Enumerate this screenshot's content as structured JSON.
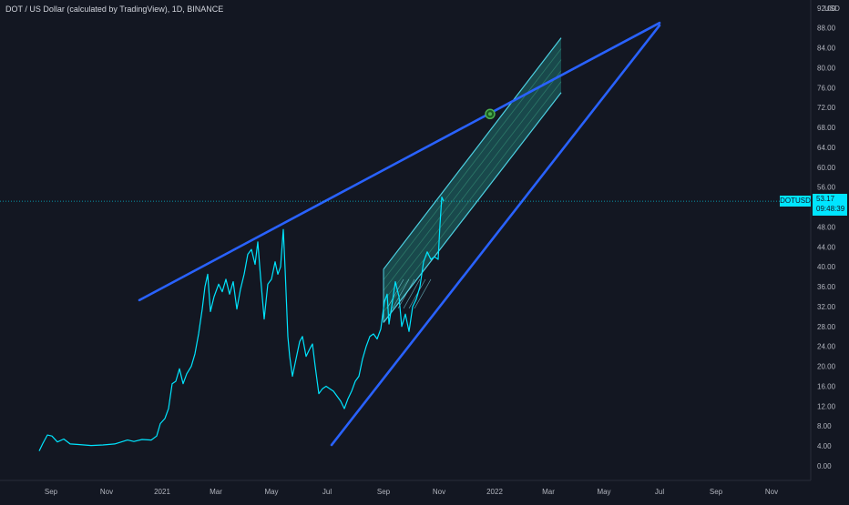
{
  "header": {
    "title": "DOT / US Dollar (calculated by TradingView), 1D, BINANCE"
  },
  "price_axis": {
    "unit": "USD",
    "ticks": [
      "92.00",
      "88.00",
      "84.00",
      "80.00",
      "76.00",
      "72.00",
      "68.00",
      "64.00",
      "60.00",
      "56.00",
      "52.00",
      "48.00",
      "44.00",
      "40.00",
      "36.00",
      "32.00",
      "28.00",
      "24.00",
      "20.00",
      "16.00",
      "12.00",
      "8.00",
      "4.00",
      "0.00"
    ]
  },
  "time_axis": {
    "ticks": [
      "Sep",
      "Nov",
      "2021",
      "Mar",
      "May",
      "Jul",
      "Sep",
      "Nov",
      "2022",
      "Mar",
      "May",
      "Jul",
      "Sep",
      "Nov"
    ]
  },
  "last_price": {
    "symbol": "DOTUSD",
    "price": "53.17",
    "countdown": "09:48:39"
  },
  "colors": {
    "background": "#131722",
    "price_line": "#00e5ff",
    "trendline": "#2962ff",
    "channel_fill": "#26a69a",
    "marker": "#4caf50"
  },
  "chart_data": {
    "type": "line",
    "title": "DOT / US Dollar (calculated by TradingView), 1D, BINANCE",
    "xlabel": "",
    "ylabel": "USD",
    "ylim": [
      -2,
      92
    ],
    "x_range": [
      "2020-08-18",
      "2022-12-31"
    ],
    "grid": false,
    "series": [
      {
        "name": "DOTUSD",
        "points": [
          [
            "2020-08-19",
            3.0
          ],
          [
            "2020-08-23",
            4.5
          ],
          [
            "2020-08-28",
            6.2
          ],
          [
            "2020-09-02",
            6.0
          ],
          [
            "2020-09-08",
            4.8
          ],
          [
            "2020-09-15",
            5.4
          ],
          [
            "2020-09-22",
            4.4
          ],
          [
            "2020-10-01",
            4.3
          ],
          [
            "2020-10-15",
            4.1
          ],
          [
            "2020-10-28",
            4.2
          ],
          [
            "2020-11-10",
            4.4
          ],
          [
            "2020-11-24",
            5.2
          ],
          [
            "2020-12-01",
            4.9
          ],
          [
            "2020-12-10",
            5.3
          ],
          [
            "2020-12-20",
            5.2
          ],
          [
            "2020-12-26",
            6.0
          ],
          [
            "2020-12-30",
            8.5
          ],
          [
            "2021-01-04",
            9.5
          ],
          [
            "2021-01-08",
            11.5
          ],
          [
            "2021-01-12",
            16.5
          ],
          [
            "2021-01-16",
            17.0
          ],
          [
            "2021-01-20",
            19.5
          ],
          [
            "2021-01-24",
            16.5
          ],
          [
            "2021-01-28",
            18.5
          ],
          [
            "2021-02-02",
            20.0
          ],
          [
            "2021-02-06",
            22.5
          ],
          [
            "2021-02-10",
            26.5
          ],
          [
            "2021-02-14",
            31.5
          ],
          [
            "2021-02-17",
            36.0
          ],
          [
            "2021-02-20",
            38.5
          ],
          [
            "2021-02-23",
            31.0
          ],
          [
            "2021-02-27",
            34.0
          ],
          [
            "2021-03-04",
            36.5
          ],
          [
            "2021-03-08",
            35.0
          ],
          [
            "2021-03-12",
            37.5
          ],
          [
            "2021-03-16",
            34.5
          ],
          [
            "2021-03-20",
            37.0
          ],
          [
            "2021-03-24",
            31.5
          ],
          [
            "2021-03-28",
            35.5
          ],
          [
            "2021-04-01",
            38.5
          ],
          [
            "2021-04-05",
            42.5
          ],
          [
            "2021-04-09",
            43.5
          ],
          [
            "2021-04-13",
            40.5
          ],
          [
            "2021-04-16",
            45.0
          ],
          [
            "2021-04-19",
            38.0
          ],
          [
            "2021-04-23",
            29.5
          ],
          [
            "2021-04-27",
            36.5
          ],
          [
            "2021-05-01",
            37.5
          ],
          [
            "2021-05-05",
            41.0
          ],
          [
            "2021-05-08",
            38.5
          ],
          [
            "2021-05-11",
            40.0
          ],
          [
            "2021-05-14",
            47.5
          ],
          [
            "2021-05-16",
            39.5
          ],
          [
            "2021-05-19",
            26.0
          ],
          [
            "2021-05-21",
            22.0
          ],
          [
            "2021-05-24",
            18.0
          ],
          [
            "2021-05-28",
            21.5
          ],
          [
            "2021-06-01",
            25.0
          ],
          [
            "2021-06-04",
            26.0
          ],
          [
            "2021-06-08",
            22.0
          ],
          [
            "2021-06-12",
            23.5
          ],
          [
            "2021-06-15",
            24.5
          ],
          [
            "2021-06-18",
            20.0
          ],
          [
            "2021-06-22",
            14.5
          ],
          [
            "2021-06-26",
            15.5
          ],
          [
            "2021-06-30",
            16.0
          ],
          [
            "2021-07-04",
            15.5
          ],
          [
            "2021-07-08",
            15.0
          ],
          [
            "2021-07-12",
            14.0
          ],
          [
            "2021-07-16",
            13.0
          ],
          [
            "2021-07-20",
            11.5
          ],
          [
            "2021-07-24",
            13.5
          ],
          [
            "2021-07-28",
            15.0
          ],
          [
            "2021-08-01",
            17.0
          ],
          [
            "2021-08-05",
            18.0
          ],
          [
            "2021-08-09",
            21.5
          ],
          [
            "2021-08-13",
            24.0
          ],
          [
            "2021-08-17",
            26.0
          ],
          [
            "2021-08-21",
            26.5
          ],
          [
            "2021-08-25",
            25.5
          ],
          [
            "2021-08-29",
            27.5
          ],
          [
            "2021-09-02",
            33.0
          ],
          [
            "2021-09-05",
            34.5
          ],
          [
            "2021-09-07",
            28.5
          ],
          [
            "2021-09-10",
            32.0
          ],
          [
            "2021-09-14",
            37.0
          ],
          [
            "2021-09-18",
            34.0
          ],
          [
            "2021-09-21",
            28.0
          ],
          [
            "2021-09-25",
            30.5
          ],
          [
            "2021-09-29",
            27.0
          ],
          [
            "2021-10-03",
            32.0
          ],
          [
            "2021-10-07",
            33.5
          ],
          [
            "2021-10-11",
            36.0
          ],
          [
            "2021-10-15",
            41.0
          ],
          [
            "2021-10-19",
            43.0
          ],
          [
            "2021-10-23",
            41.5
          ],
          [
            "2021-10-27",
            42.0
          ],
          [
            "2021-10-31",
            41.5
          ],
          [
            "2021-11-02",
            48.5
          ],
          [
            "2021-11-04",
            54.0
          ],
          [
            "2021-11-06",
            53.2
          ]
        ]
      }
    ],
    "annotations": {
      "trendlines": [
        {
          "from": [
            "2020-12-07",
            33.3
          ],
          "to": [
            "2022-07-01",
            89.0
          ]
        },
        {
          "from": [
            "2021-07-06",
            4.2
          ],
          "to": [
            "2022-07-01",
            88.5
          ]
        }
      ],
      "regression_channel": {
        "start": "2021-09-01",
        "start_values": [
          28.8,
          34.2,
          39.5
        ],
        "end": "2022-03-15",
        "end_values": [
          75.0,
          80.5,
          86.0
        ],
        "band": 18.0
      },
      "marker": {
        "x": "2021-12-27",
        "y": 70.7
      },
      "last_price_line": 53.17
    }
  }
}
